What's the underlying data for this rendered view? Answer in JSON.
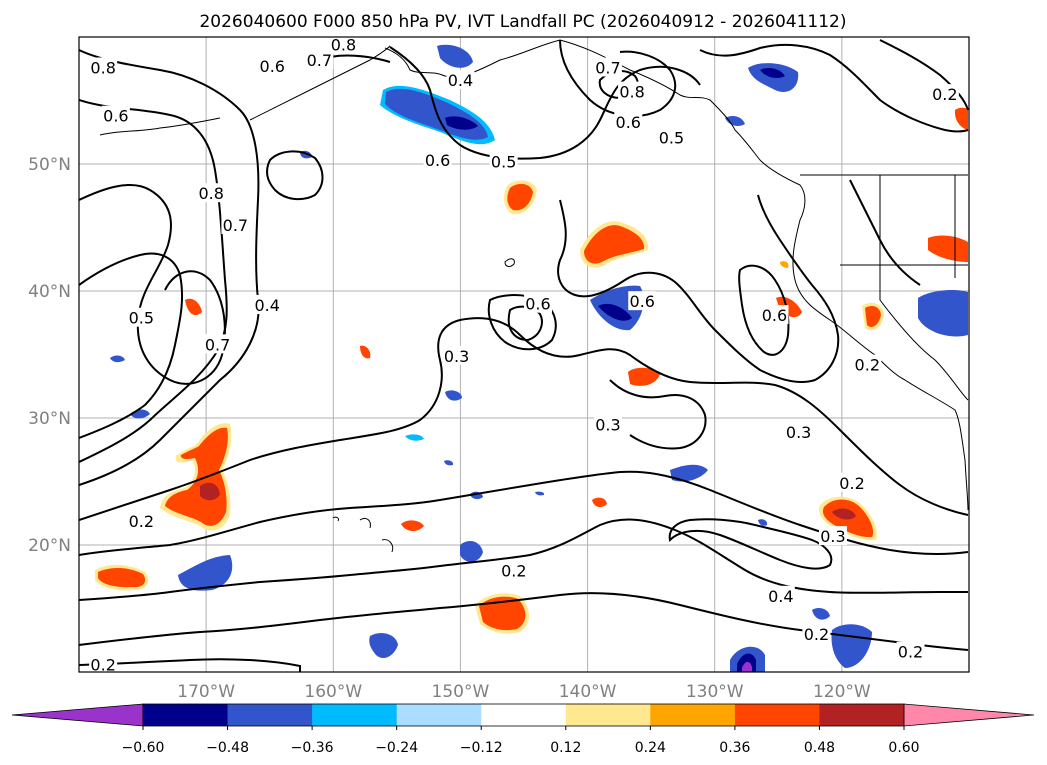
{
  "chart_data": {
    "type": "contour-map",
    "title": "2026040600 F000 850 hPa PV, IVT Landfall PC (2026040912 - 2026041112)",
    "projection": "PlateCarree",
    "extent": {
      "lon_min": -180,
      "lon_max": -110,
      "lat_min": 10,
      "lat_max": 60
    },
    "grid": true,
    "lat_ticks": [
      {
        "lat": 50,
        "label": "50°N"
      },
      {
        "lat": 40,
        "label": "40°N"
      },
      {
        "lat": 30,
        "label": "30°N"
      },
      {
        "lat": 20,
        "label": "20°N"
      }
    ],
    "lon_ticks": [
      {
        "lon": -170,
        "label": "170°W"
      },
      {
        "lon": -160,
        "label": "160°W"
      },
      {
        "lon": -150,
        "label": "150°W"
      },
      {
        "lon": -140,
        "label": "140°W"
      },
      {
        "lon": -130,
        "label": "130°W"
      },
      {
        "lon": -120,
        "label": "120°W"
      }
    ],
    "colorbar": {
      "orientation": "horizontal",
      "extend": "both",
      "levels": [
        -0.6,
        -0.48,
        -0.36,
        -0.24,
        -0.12,
        0.12,
        0.24,
        0.36,
        0.48,
        0.6
      ],
      "tick_labels": [
        "−0.60",
        "−0.48",
        "−0.36",
        "−0.24",
        "−0.12",
        "0.12",
        "0.24",
        "0.36",
        "0.48",
        "0.60"
      ],
      "colors": [
        "#9933cc",
        "#00008b",
        "#3355cc",
        "#00bbff",
        "#aaddff",
        "#ffffff",
        "#ffe890",
        "#ffa500",
        "#ff4500",
        "#b22222",
        "#ff88aa"
      ]
    },
    "contour_labels": [
      {
        "text": "0.8",
        "lon": -178.1,
        "lat": 57.6
      },
      {
        "text": "0.6",
        "lon": -177.1,
        "lat": 53.8
      },
      {
        "text": "0.6",
        "lon": -164.8,
        "lat": 57.7
      },
      {
        "text": "0.8",
        "lon": -159.2,
        "lat": 59.4
      },
      {
        "text": "0.7",
        "lon": -161.1,
        "lat": 58.2
      },
      {
        "text": "0.4",
        "lon": -150.0,
        "lat": 56.6
      },
      {
        "text": "0.7",
        "lon": -138.4,
        "lat": 57.6
      },
      {
        "text": "0.8",
        "lon": -136.5,
        "lat": 55.7
      },
      {
        "text": "0.6",
        "lon": -136.8,
        "lat": 53.3
      },
      {
        "text": "0.5",
        "lon": -133.4,
        "lat": 52.1
      },
      {
        "text": "0.6",
        "lon": -151.8,
        "lat": 50.3
      },
      {
        "text": "0.5",
        "lon": -146.6,
        "lat": 50.2
      },
      {
        "text": "0.2",
        "lon": -111.9,
        "lat": 55.5
      },
      {
        "text": "0.8",
        "lon": -169.6,
        "lat": 47.7
      },
      {
        "text": "0.7",
        "lon": -167.7,
        "lat": 45.2
      },
      {
        "text": "0.5",
        "lon": -175.1,
        "lat": 37.9
      },
      {
        "text": "0.4",
        "lon": -165.2,
        "lat": 38.9
      },
      {
        "text": "0.7",
        "lon": -169.1,
        "lat": 35.8
      },
      {
        "text": "0.6",
        "lon": -143.9,
        "lat": 39.0
      },
      {
        "text": "0.6",
        "lon": -135.7,
        "lat": 39.2
      },
      {
        "text": "0.6",
        "lon": -125.3,
        "lat": 38.1
      },
      {
        "text": "0.3",
        "lon": -150.3,
        "lat": 34.9
      },
      {
        "text": "0.2",
        "lon": -118.0,
        "lat": 34.2
      },
      {
        "text": "0.3",
        "lon": -138.4,
        "lat": 29.5
      },
      {
        "text": "0.3",
        "lon": -123.4,
        "lat": 28.9
      },
      {
        "text": "0.2",
        "lon": -119.2,
        "lat": 24.9
      },
      {
        "text": "0.2",
        "lon": -175.1,
        "lat": 21.9
      },
      {
        "text": "0.3",
        "lon": -120.7,
        "lat": 20.7
      },
      {
        "text": "0.2",
        "lon": -145.8,
        "lat": 18.0
      },
      {
        "text": "0.4",
        "lon": -124.8,
        "lat": 16.0
      },
      {
        "text": "0.2",
        "lon": -122.0,
        "lat": 13.0
      },
      {
        "text": "0.2",
        "lon": -114.6,
        "lat": 11.6
      },
      {
        "text": "0.2",
        "lon": -178.1,
        "lat": 10.6
      }
    ]
  }
}
